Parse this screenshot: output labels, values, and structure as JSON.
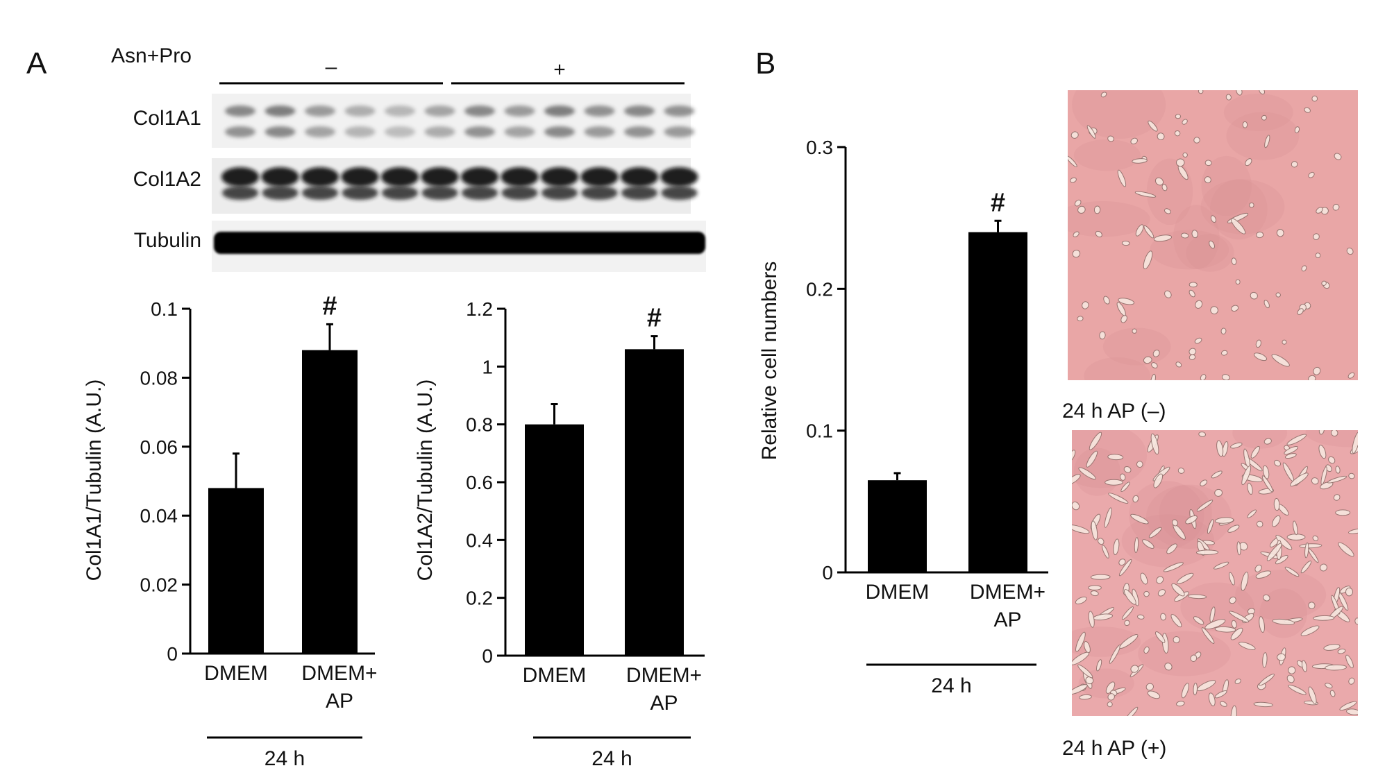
{
  "panels": {
    "a": "A",
    "b": "B"
  },
  "blot": {
    "treatment_label": "Asn+Pro",
    "groups": [
      "–",
      "+"
    ],
    "bands": [
      "Col1A1",
      "Col1A2",
      "Tubulin"
    ],
    "lanes_per_group": 6
  },
  "micrographs": [
    {
      "caption": "24 h AP (–)",
      "tint": "#e9a6a6"
    },
    {
      "caption": "24 h AP (+)",
      "tint": "#eaa9ab"
    }
  ],
  "colors": {
    "bar": "#000000",
    "axis": "#000000"
  },
  "chart_data": [
    {
      "type": "bar",
      "id": "col1a1",
      "categories": [
        [
          "DMEM"
        ],
        [
          "DMEM+",
          "AP"
        ]
      ],
      "values": [
        0.048,
        0.088
      ],
      "errors": [
        0.01,
        0.0075
      ],
      "significance": [
        "",
        "#"
      ],
      "ylabel": "Col1A1/Tubulin (A.U.)",
      "ylim": [
        0,
        0.1
      ],
      "yticks": [
        0,
        0.02,
        0.04,
        0.06,
        0.08,
        0.1
      ],
      "ytick_labels": [
        "0",
        "0.02",
        "0.04",
        "0.06",
        "0.08",
        "0.1"
      ],
      "group_label": "24 h"
    },
    {
      "type": "bar",
      "id": "col1a2",
      "categories": [
        [
          "DMEM"
        ],
        [
          "DMEM+",
          "AP"
        ]
      ],
      "values": [
        0.8,
        1.06
      ],
      "errors": [
        0.07,
        0.045
      ],
      "significance": [
        "",
        "#"
      ],
      "ylabel": "Col1A2/Tubulin (A.U.)",
      "ylim": [
        0,
        1.2
      ],
      "yticks": [
        0,
        0.2,
        0.4,
        0.6,
        0.8,
        1,
        1.2
      ],
      "ytick_labels": [
        "0",
        "0.2",
        "0.4",
        "0.6",
        "0.8",
        "1",
        "1.2"
      ],
      "group_label": "24 h"
    },
    {
      "type": "bar",
      "id": "cells",
      "categories": [
        [
          "DMEM"
        ],
        [
          "DMEM+",
          "AP"
        ]
      ],
      "values": [
        0.065,
        0.24
      ],
      "errors": [
        0.005,
        0.008
      ],
      "significance": [
        "",
        "#"
      ],
      "ylabel": "Relative cell numbers",
      "ylim": [
        0,
        0.3
      ],
      "yticks": [
        0,
        0.1,
        0.2,
        0.3
      ],
      "ytick_labels": [
        "0",
        "0.1",
        "0.2",
        "0.3"
      ],
      "group_label": "24 h"
    }
  ]
}
